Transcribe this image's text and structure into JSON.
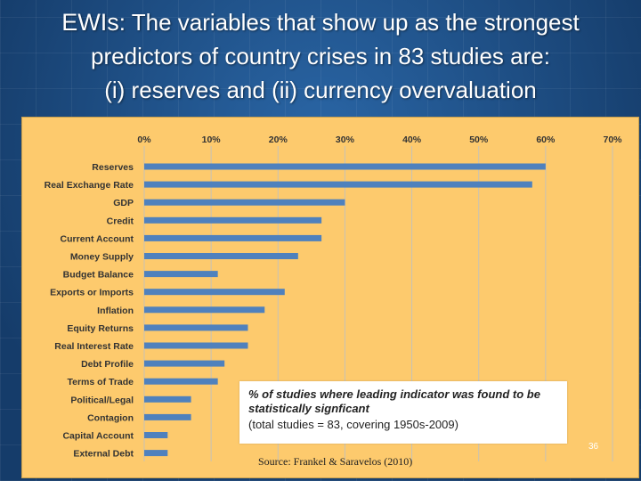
{
  "slide": {
    "title_lead": "EWIs",
    "title_line1_rest": ": The variables that show up as the strongest",
    "title_line2": "predictors of country crises in 83 studies are:",
    "title_line3": "(i) reserves and (ii) currency overvaluation",
    "source": "Source: Frankel & Saravelos (2010)",
    "slide_number": "36"
  },
  "chart_data": {
    "type": "bar",
    "orientation": "horizontal",
    "categories": [
      "Reserves",
      "Real Exchange Rate",
      "GDP",
      "Credit",
      "Current Account",
      "Money Supply",
      "Budget Balance",
      "Exports or Imports",
      "Inflation",
      "Equity Returns",
      "Real Interest Rate",
      "Debt Profile",
      "Terms of Trade",
      "Political/Legal",
      "Contagion",
      "Capital Account",
      "External Debt"
    ],
    "values": [
      60,
      58,
      30,
      26.5,
      26.5,
      23,
      11,
      21,
      18,
      15.5,
      15.5,
      12,
      11,
      7,
      7,
      3.5,
      3.5
    ],
    "xlim": [
      0,
      70
    ],
    "x_ticks": [
      "0%",
      "10%",
      "20%",
      "30%",
      "40%",
      "50%",
      "60%",
      "70%"
    ],
    "x_tick_position": "top",
    "grid": true,
    "bar_color": "#4f81bd",
    "background_color": "#fdca6d",
    "legend_lines": [
      "% of studies where leading indicator was found to be",
      "statistically signficant",
      "(total studies = 83, covering 1950s-2009)"
    ],
    "legend_position": "bottom-right"
  }
}
